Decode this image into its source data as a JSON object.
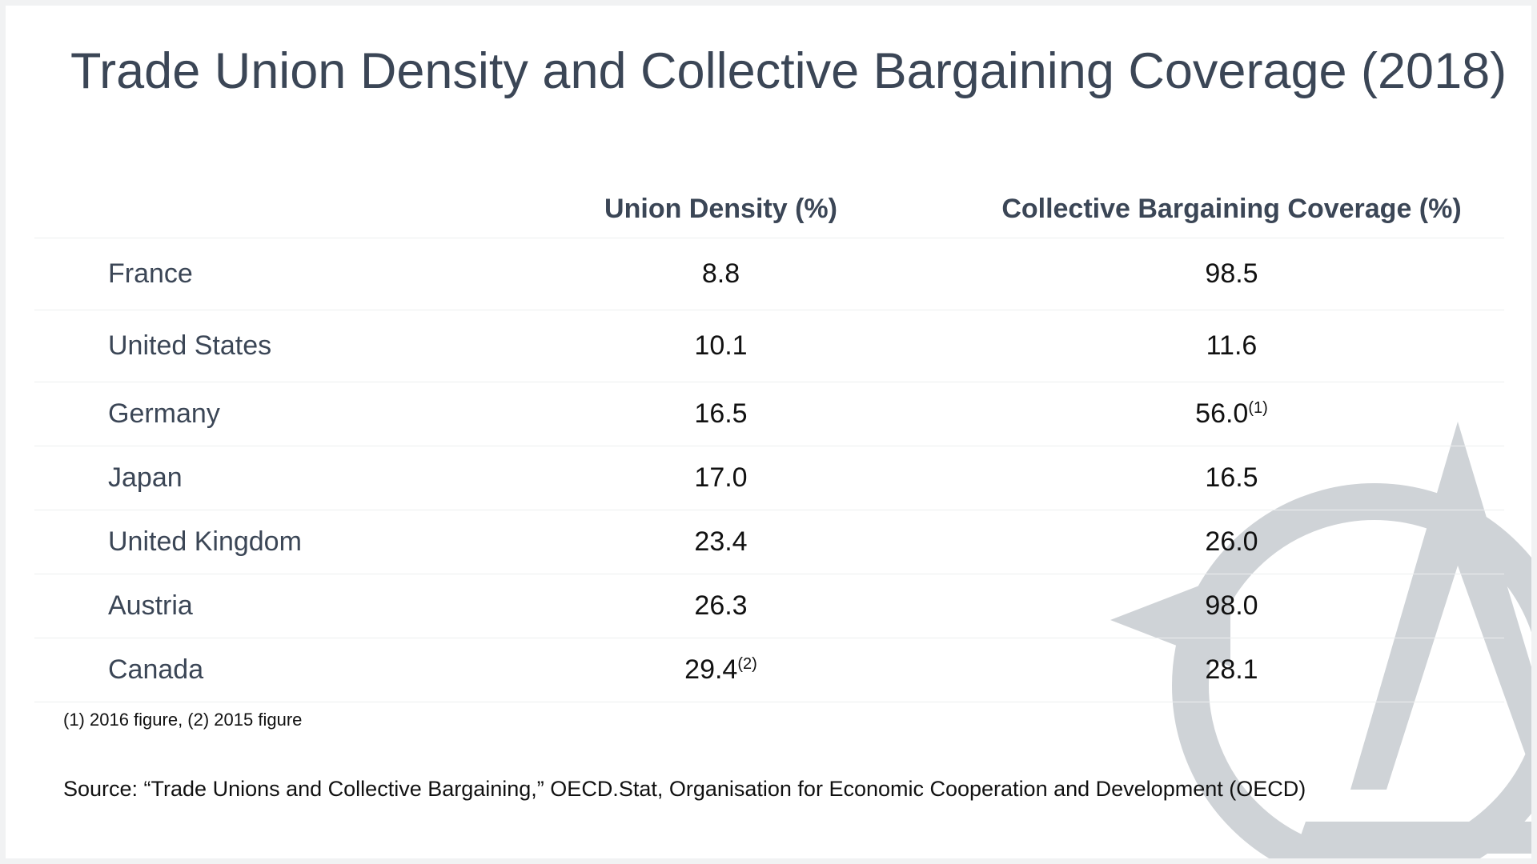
{
  "title": "Trade Union Density and Collective Bargaining Coverage (2018)",
  "chart_data": {
    "type": "table",
    "title": "Trade Union Density and Collective Bargaining Coverage (2018)",
    "columns": [
      "",
      "Union Density (%)",
      "Collective Bargaining Coverage (%)"
    ],
    "rows": [
      {
        "country": "France",
        "density": "8.8",
        "density_note": "",
        "coverage": "98.5",
        "coverage_note": ""
      },
      {
        "country": "United States",
        "density": "10.1",
        "density_note": "",
        "coverage": "11.6",
        "coverage_note": ""
      },
      {
        "country": "Germany",
        "density": "16.5",
        "density_note": "",
        "coverage": "56.0",
        "coverage_note": "(1)"
      },
      {
        "country": "Japan",
        "density": "17.0",
        "density_note": "",
        "coverage": "16.5",
        "coverage_note": ""
      },
      {
        "country": "United Kingdom",
        "density": "23.4",
        "density_note": "",
        "coverage": "26.0",
        "coverage_note": ""
      },
      {
        "country": "Austria",
        "density": "26.3",
        "density_note": "",
        "coverage": "98.0",
        "coverage_note": ""
      },
      {
        "country": "Canada",
        "density": "29.4",
        "density_note": "(2)",
        "coverage": "28.1",
        "coverage_note": ""
      }
    ]
  },
  "footnote": "(1) 2016 figure, (2) 2015 figure",
  "source": "Source: “Trade Unions and Collective Bargaining,” OECD.Stat, Organisation for Economic Cooperation and Development (OECD)",
  "colors": {
    "title": "#3b4656",
    "body_text": "#111111",
    "divider": "#eceef0",
    "watermark": "#cfd3d7",
    "background": "#ffffff"
  },
  "icons": {
    "watermark": "compass-logo-icon"
  }
}
